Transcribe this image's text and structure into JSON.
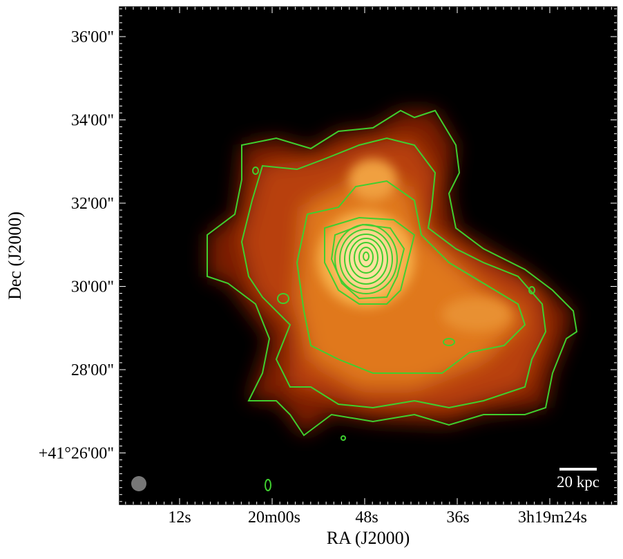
{
  "figure": {
    "x_label": "RA (J2000)",
    "y_label": "Dec (J2000)",
    "x_tick_labels": [
      "12s",
      "20m00s",
      "48s",
      "36s",
      "3h19m24s"
    ],
    "y_tick_labels": [
      "36'00\"",
      "34'00\"",
      "32'00\"",
      "30'00\"",
      "28'00\"",
      "+41°26'00\""
    ],
    "scale_bar_label": "20 kpc"
  }
}
